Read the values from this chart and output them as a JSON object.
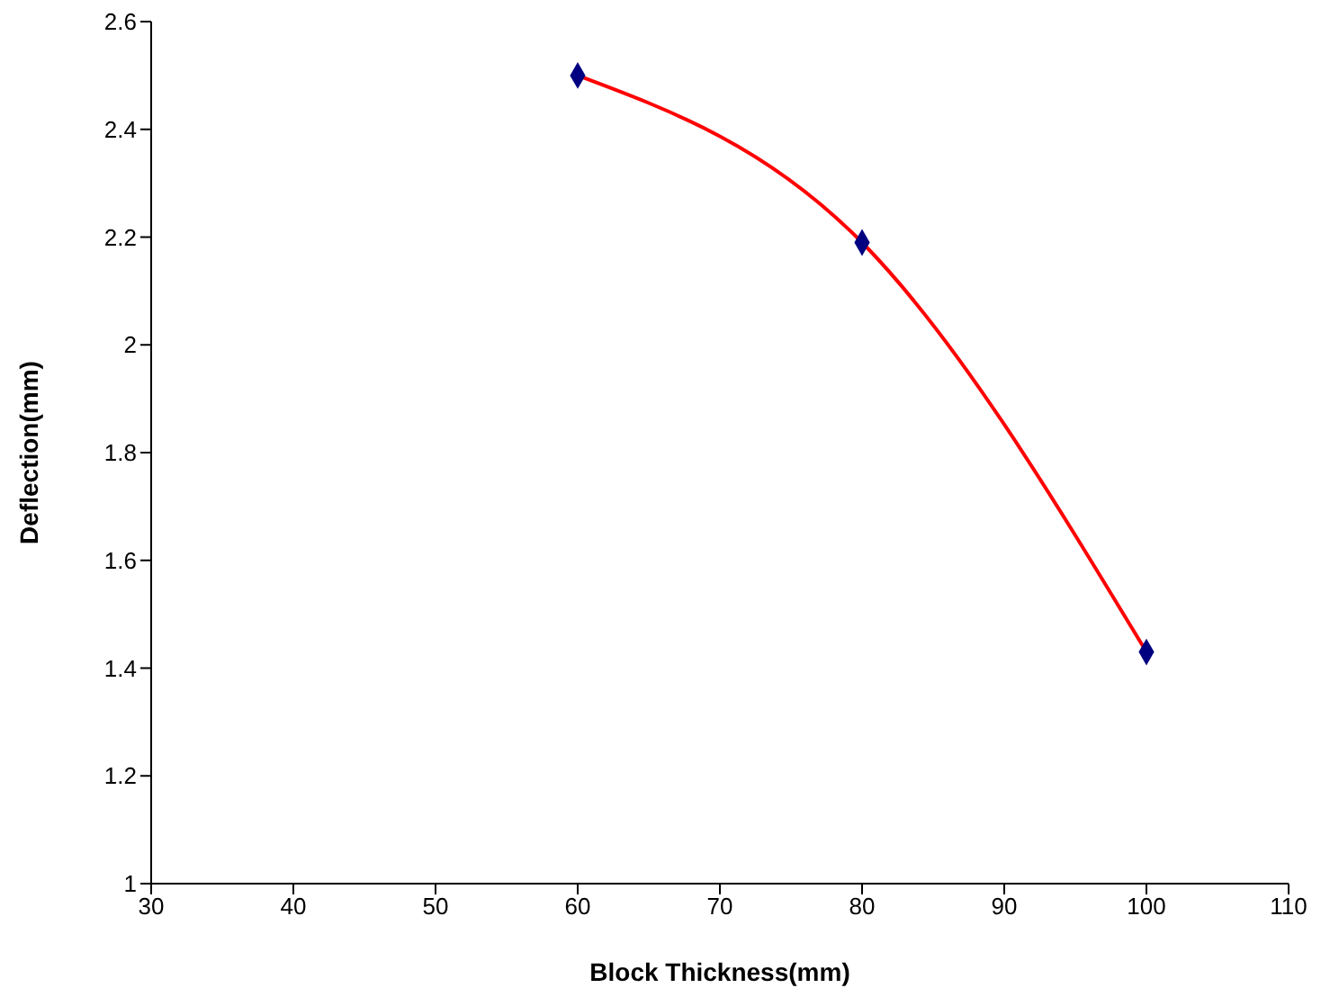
{
  "chart_data": {
    "type": "line",
    "xlabel": "Block Thickness(mm)",
    "ylabel": "Deflection(mm)",
    "x": [
      60,
      80,
      100
    ],
    "series": [
      {
        "color": "#ff0000",
        "values": [
          2.5,
          2.19,
          1.43
        ],
        "marker": "none"
      },
      {
        "type": "scatter",
        "color": "#000080",
        "values": [
          2.5,
          2.19,
          1.43
        ],
        "marker": "diamond"
      }
    ],
    "xlim": [
      30,
      110
    ],
    "xticks": [
      30,
      40,
      50,
      60,
      70,
      80,
      90,
      100,
      110
    ],
    "ylim": [
      1,
      2.6
    ],
    "yticks": [
      1,
      1.2,
      1.4,
      1.6,
      1.8,
      2,
      2.2,
      2.4,
      2.6
    ],
    "grid": false
  }
}
